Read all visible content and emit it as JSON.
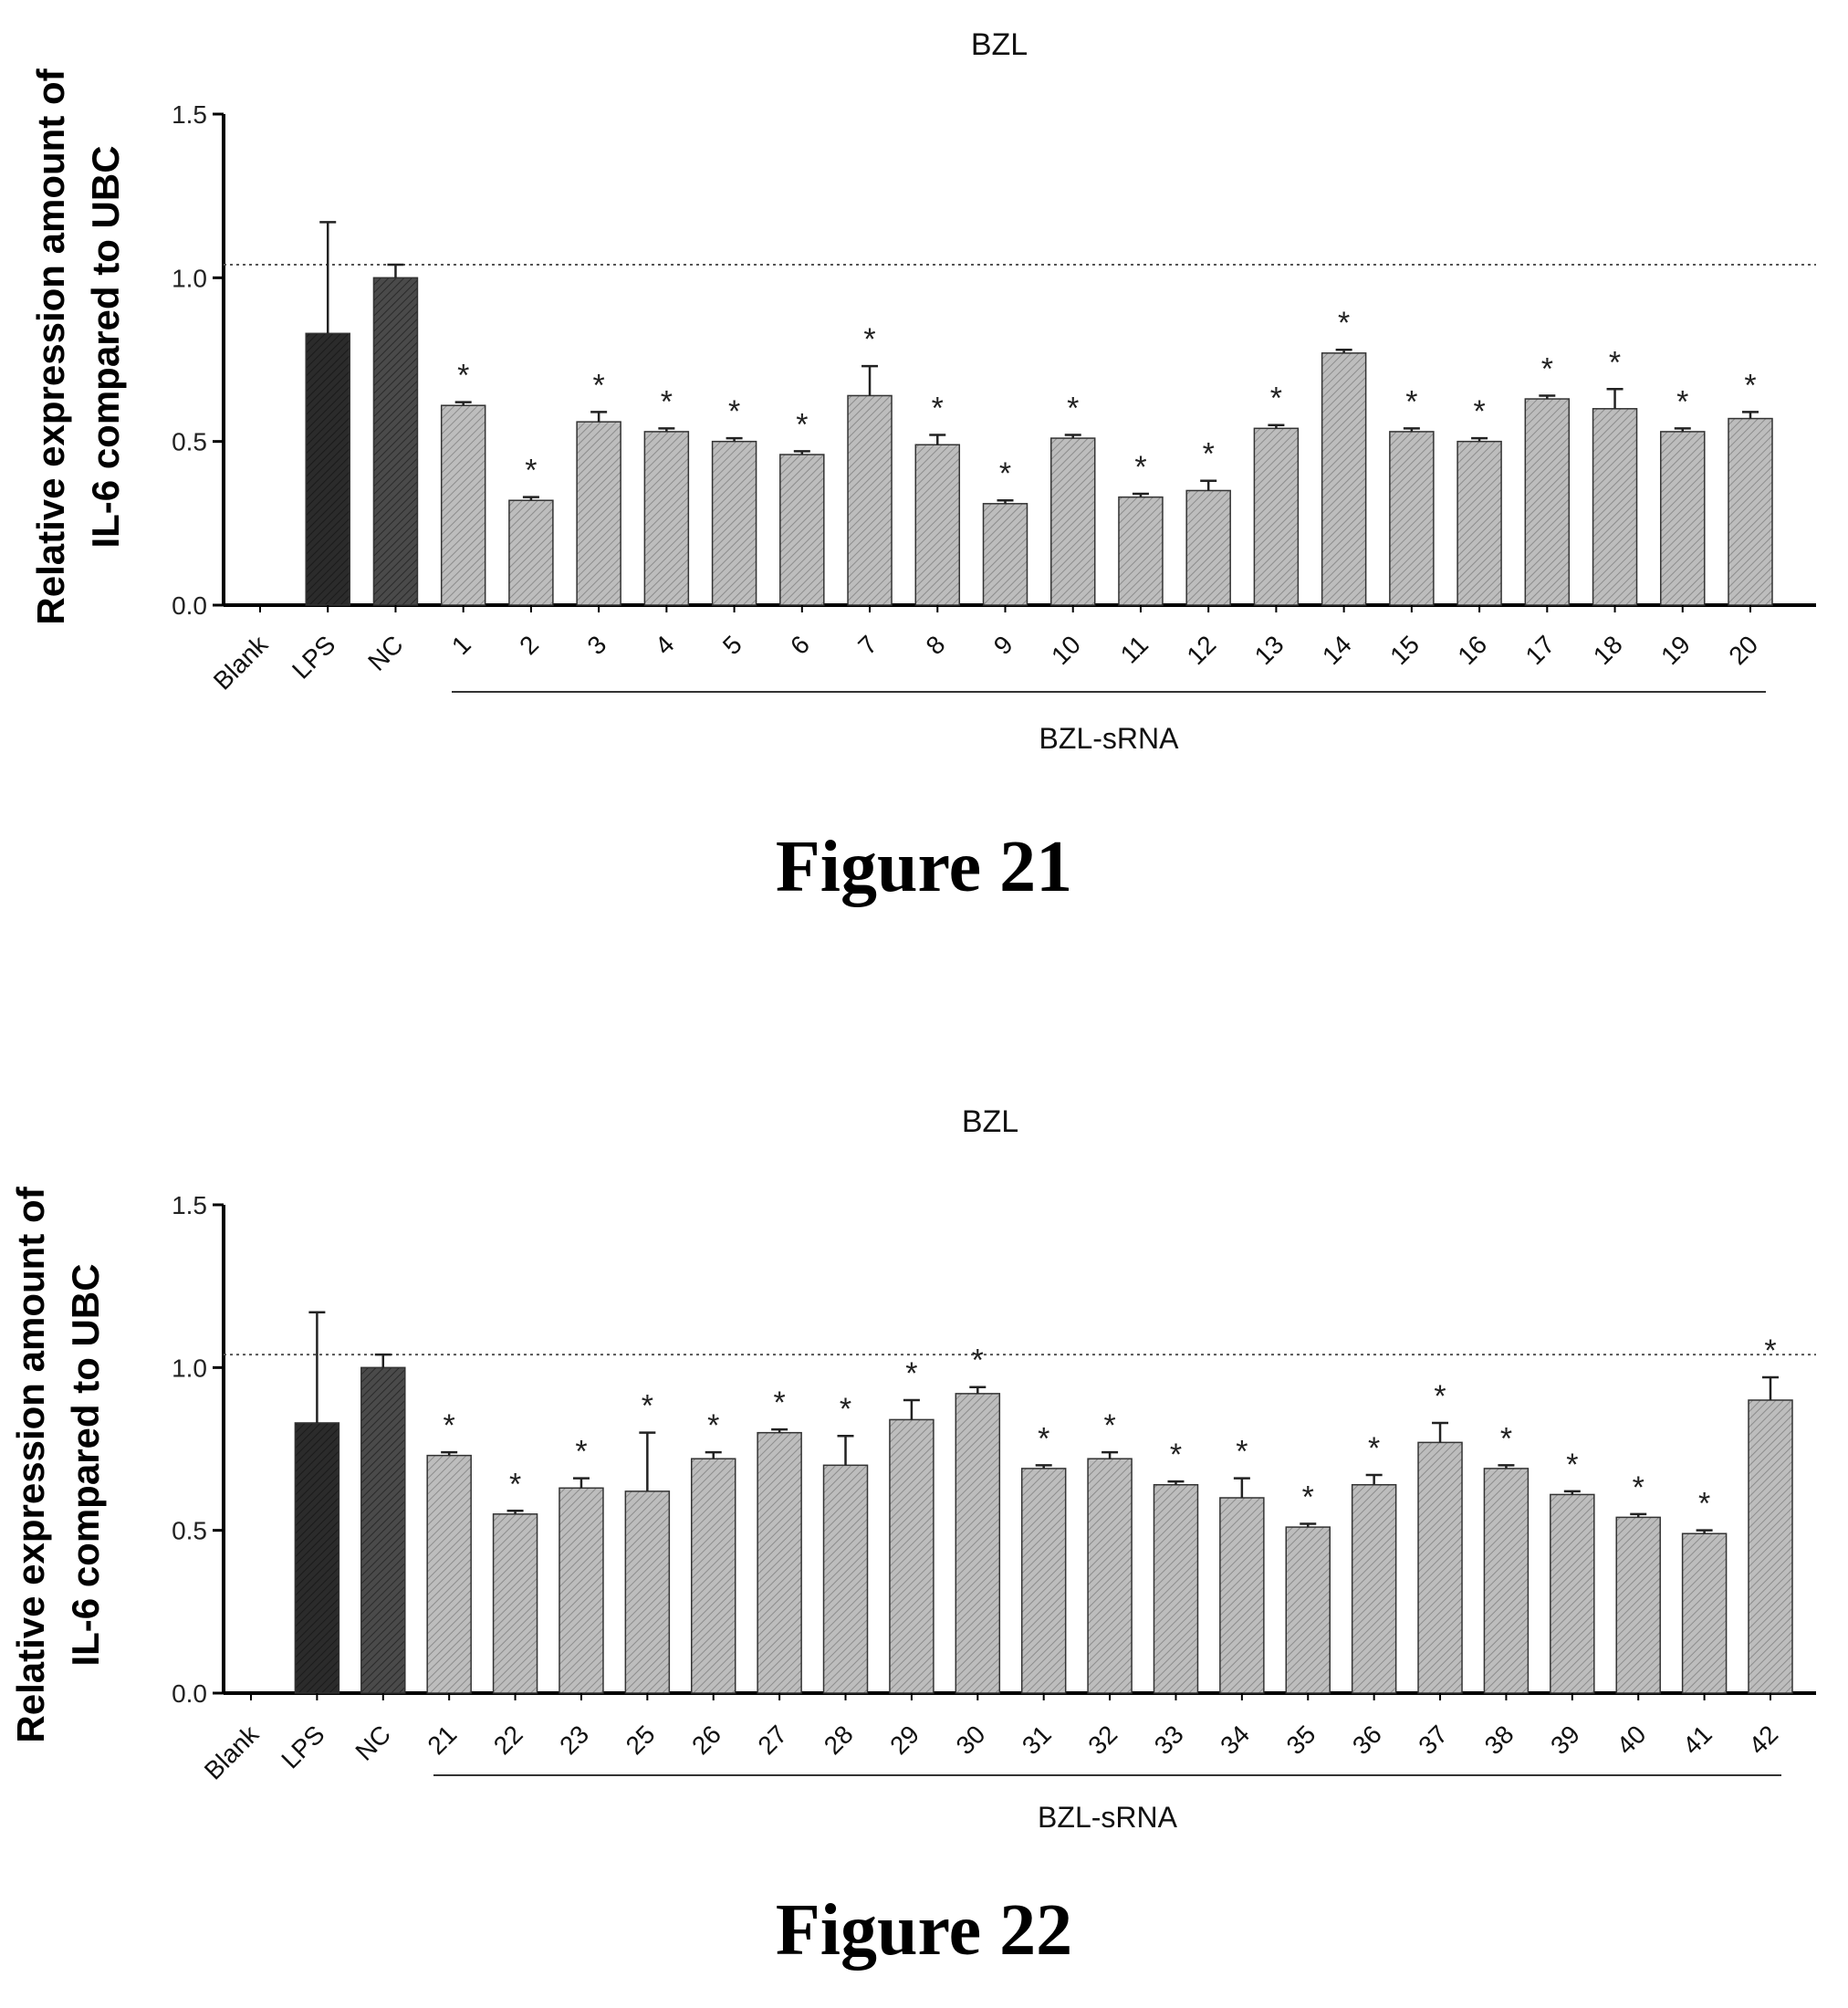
{
  "page": {
    "captions": [
      "Figure 21",
      "Figure 22"
    ]
  },
  "chart_data": [
    {
      "type": "bar",
      "title": "BZL",
      "ylabel_line1": "Relative expression amount of",
      "ylabel_line2": "IL-6 compared to UBC",
      "group_label": "BZL-sRNA",
      "ylim": [
        0,
        1.5
      ],
      "yticks": [
        "0.0",
        "0.5",
        "1.0",
        "1.5"
      ],
      "reference_line": 1.04,
      "categories": [
        "Blank",
        "LPS",
        "NC",
        "1",
        "2",
        "3",
        "4",
        "5",
        "6",
        "7",
        "8",
        "9",
        "10",
        "11",
        "12",
        "13",
        "14",
        "15",
        "16",
        "17",
        "18",
        "19",
        "20"
      ],
      "values": [
        0,
        0.83,
        1.0,
        0.61,
        0.32,
        0.56,
        0.53,
        0.5,
        0.46,
        0.64,
        0.49,
        0.31,
        0.51,
        0.33,
        0.35,
        0.54,
        0.77,
        0.53,
        0.5,
        0.63,
        0.6,
        0.53,
        0.57
      ],
      "errors": [
        0,
        0.34,
        0.04,
        0.01,
        0.01,
        0.03,
        0.01,
        0.01,
        0.01,
        0.09,
        0.03,
        0.01,
        0.01,
        0.01,
        0.03,
        0.01,
        0.01,
        0.01,
        0.01,
        0.01,
        0.06,
        0.01,
        0.02
      ],
      "significant": [
        false,
        false,
        false,
        true,
        true,
        true,
        true,
        true,
        true,
        true,
        true,
        true,
        true,
        true,
        true,
        true,
        true,
        true,
        true,
        true,
        true,
        true,
        true
      ],
      "asterisk": "*",
      "colors": {
        "lps": "#2b2b2b",
        "nc": "#4a4a4a",
        "srna": "#bdbdbd"
      },
      "grid": false
    },
    {
      "type": "bar",
      "title": "BZL",
      "ylabel_line1": "Relative expression amount of",
      "ylabel_line2": "IL-6 compared to UBC",
      "group_label": "BZL-sRNA",
      "ylim": [
        0,
        1.5
      ],
      "yticks": [
        "0.0",
        "0.5",
        "1.0",
        "1.5"
      ],
      "reference_line": 1.04,
      "categories": [
        "Blank",
        "LPS",
        "NC",
        "21",
        "22",
        "23",
        "25",
        "26",
        "27",
        "28",
        "29",
        "30",
        "31",
        "32",
        "33",
        "34",
        "35",
        "36",
        "37",
        "38",
        "39",
        "40",
        "41",
        "42"
      ],
      "values": [
        0,
        0.83,
        1.0,
        0.73,
        0.55,
        0.63,
        0.62,
        0.72,
        0.8,
        0.7,
        0.84,
        0.92,
        0.69,
        0.72,
        0.64,
        0.6,
        0.51,
        0.64,
        0.77,
        0.69,
        0.61,
        0.54,
        0.49,
        0.9
      ],
      "errors": [
        0,
        0.34,
        0.04,
        0.01,
        0.01,
        0.03,
        0.18,
        0.02,
        0.01,
        0.09,
        0.06,
        0.02,
        0.01,
        0.02,
        0.01,
        0.06,
        0.01,
        0.03,
        0.06,
        0.01,
        0.01,
        0.01,
        0.01,
        0.07
      ],
      "significant": [
        false,
        false,
        false,
        true,
        true,
        true,
        true,
        true,
        true,
        true,
        true,
        true,
        true,
        true,
        true,
        true,
        true,
        true,
        true,
        true,
        true,
        true,
        true,
        true
      ],
      "asterisk": "*",
      "colors": {
        "lps": "#2b2b2b",
        "nc": "#4a4a4a",
        "srna": "#bdbdbd"
      },
      "grid": false
    }
  ]
}
